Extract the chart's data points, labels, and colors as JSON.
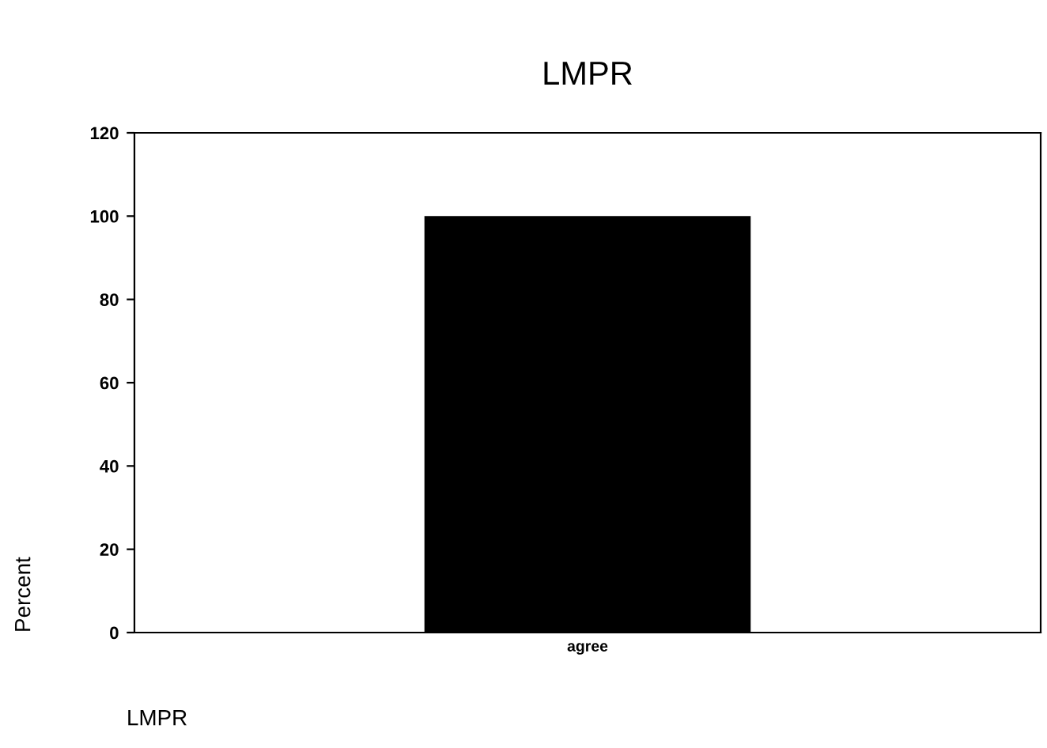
{
  "chart_data": {
    "type": "bar",
    "title": "LMPR",
    "xlabel": "LMPR",
    "ylabel": "Percent",
    "categories": [
      "agree"
    ],
    "values": [
      100
    ],
    "color": "#000000",
    "ylim": [
      0,
      120
    ],
    "yticks": [
      0,
      20,
      40,
      60,
      80,
      100,
      120
    ],
    "grid": false
  }
}
